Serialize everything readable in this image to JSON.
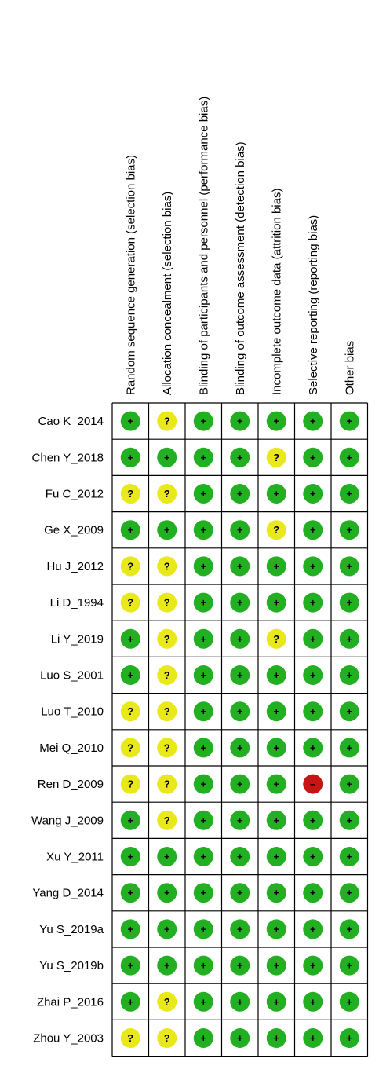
{
  "chart_data": {
    "type": "table",
    "title": "",
    "columns": [
      "Random sequence generation (selection bias)",
      "Allocation concealment (selection bias)",
      "Blinding of participants and personnel (performance bias)",
      "Blinding of outcome assessment (detection bias)",
      "Incomplete outcome data (attrition bias)",
      "Selective reporting (reporting bias)",
      "Other bias"
    ],
    "rows": [
      {
        "study": "Cao K_2014",
        "ratings": [
          "low",
          "unclear",
          "low",
          "low",
          "low",
          "low",
          "low"
        ]
      },
      {
        "study": "Chen Y_2018",
        "ratings": [
          "low",
          "low",
          "low",
          "low",
          "unclear",
          "low",
          "low"
        ]
      },
      {
        "study": "Fu C_2012",
        "ratings": [
          "unclear",
          "unclear",
          "low",
          "low",
          "low",
          "low",
          "low"
        ]
      },
      {
        "study": "Ge X_2009",
        "ratings": [
          "low",
          "low",
          "low",
          "low",
          "unclear",
          "low",
          "low"
        ]
      },
      {
        "study": "Hu J_2012",
        "ratings": [
          "unclear",
          "unclear",
          "low",
          "low",
          "low",
          "low",
          "low"
        ]
      },
      {
        "study": "Li D_1994",
        "ratings": [
          "unclear",
          "unclear",
          "low",
          "low",
          "low",
          "low",
          "low"
        ]
      },
      {
        "study": "Li Y_2019",
        "ratings": [
          "low",
          "unclear",
          "low",
          "low",
          "unclear",
          "low",
          "low"
        ]
      },
      {
        "study": "Luo S_2001",
        "ratings": [
          "low",
          "unclear",
          "low",
          "low",
          "low",
          "low",
          "low"
        ]
      },
      {
        "study": "Luo T_2010",
        "ratings": [
          "unclear",
          "unclear",
          "low",
          "low",
          "low",
          "low",
          "low"
        ]
      },
      {
        "study": "Mei Q_2010",
        "ratings": [
          "unclear",
          "unclear",
          "low",
          "low",
          "low",
          "low",
          "low"
        ]
      },
      {
        "study": "Ren D_2009",
        "ratings": [
          "unclear",
          "unclear",
          "low",
          "low",
          "low",
          "high",
          "low"
        ]
      },
      {
        "study": "Wang J_2009",
        "ratings": [
          "low",
          "unclear",
          "low",
          "low",
          "low",
          "low",
          "low"
        ]
      },
      {
        "study": "Xu Y_2011",
        "ratings": [
          "low",
          "low",
          "low",
          "low",
          "low",
          "low",
          "low"
        ]
      },
      {
        "study": "Yang D_2014",
        "ratings": [
          "low",
          "low",
          "low",
          "low",
          "low",
          "low",
          "low"
        ]
      },
      {
        "study": "Yu S_2019a",
        "ratings": [
          "low",
          "low",
          "low",
          "low",
          "low",
          "low",
          "low"
        ]
      },
      {
        "study": "Yu S_2019b",
        "ratings": [
          "low",
          "low",
          "low",
          "low",
          "low",
          "low",
          "low"
        ]
      },
      {
        "study": "Zhai P_2016",
        "ratings": [
          "low",
          "unclear",
          "low",
          "low",
          "low",
          "low",
          "low"
        ]
      },
      {
        "study": "Zhou Y_2003",
        "ratings": [
          "unclear",
          "unclear",
          "low",
          "low",
          "low",
          "low",
          "low"
        ]
      }
    ],
    "symbols": {
      "low": {
        "glyph": "+",
        "color": "#22b022"
      },
      "unclear": {
        "glyph": "?",
        "color": "#e8e81a"
      },
      "high": {
        "glyph": "–",
        "color": "#c81414"
      }
    },
    "grid": true
  }
}
